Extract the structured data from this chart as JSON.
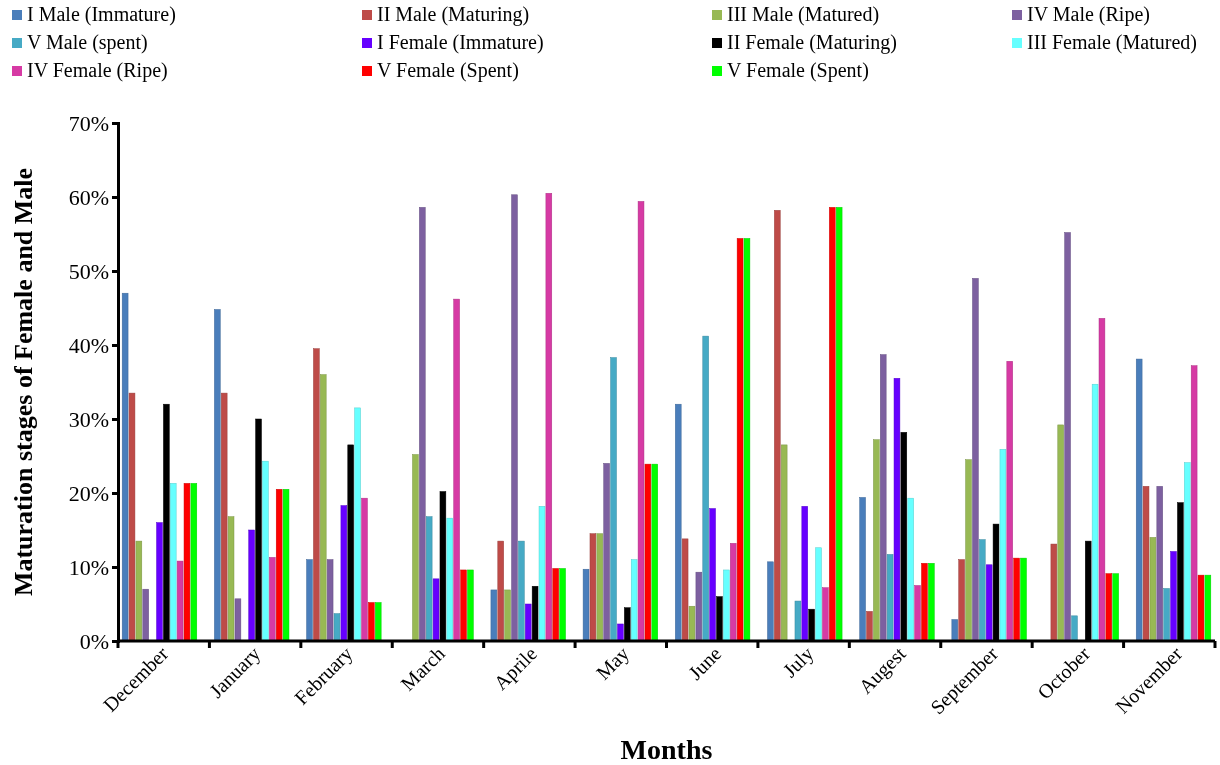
{
  "chart_data": {
    "type": "bar",
    "xlabel": "Months",
    "ylabel": "Maturation stages of Female and Male",
    "categories": [
      "December",
      "January",
      "February",
      "March",
      "Aprile",
      "May",
      "June",
      "July",
      "Augest",
      "September",
      "October",
      "November"
    ],
    "ylim": [
      0,
      70
    ],
    "yticks": [
      {
        "value": 0,
        "label": "0%"
      },
      {
        "value": 10,
        "label": "10%"
      },
      {
        "value": 20,
        "label": "20%"
      },
      {
        "value": 30,
        "label": "30%"
      },
      {
        "value": 40,
        "label": "40%"
      },
      {
        "value": 50,
        "label": "50%"
      },
      {
        "value": 60,
        "label": "60%"
      },
      {
        "value": 70,
        "label": "70%"
      }
    ],
    "grid": false,
    "legend": "top",
    "series": [
      {
        "name": "I Male (Immature)",
        "color": "#4a7ebb",
        "values": [
          47,
          44.8,
          11,
          0,
          6.9,
          9.7,
          32,
          10.7,
          19.4,
          2.9,
          0,
          38.1
        ]
      },
      {
        "name": "II Male (Maturing)",
        "color": "#be4b48",
        "values": [
          33.5,
          33.5,
          39.5,
          0,
          13.5,
          14.5,
          13.8,
          58.2,
          4,
          11,
          13.1,
          20.9
        ]
      },
      {
        "name": "III Male (Matured)",
        "color": "#98b954",
        "values": [
          13.5,
          16.8,
          36,
          25.2,
          6.9,
          14.5,
          4.7,
          26.5,
          27.2,
          24.5,
          29.2,
          14
        ]
      },
      {
        "name": "IV Male (Ripe)",
        "color": "#7d60a0",
        "values": [
          7,
          5.7,
          11,
          58.6,
          60.3,
          24,
          9.3,
          0,
          38.7,
          49,
          55.2,
          20.9
        ]
      },
      {
        "name": "V Male (spent)",
        "color": "#46aac5",
        "values": [
          0,
          0,
          3.7,
          16.8,
          13.5,
          38.3,
          41.2,
          5.4,
          11.7,
          13.7,
          3.4,
          7.1
        ]
      },
      {
        "name": "I Female (Immature)",
        "color": "#6600ff",
        "values": [
          16,
          15,
          18.3,
          8.4,
          5,
          2.3,
          17.9,
          18.2,
          35.5,
          10.3,
          0,
          12.1
        ]
      },
      {
        "name": "II Female (Maturing)",
        "color": "#000000",
        "values": [
          32,
          30,
          26.5,
          20.2,
          7.4,
          4.5,
          6,
          4.3,
          28.2,
          15.8,
          13.5,
          18.7
        ]
      },
      {
        "name": "III Female (Matured)",
        "color": "#66ffff",
        "values": [
          21.3,
          24.3,
          31.5,
          16.6,
          18.2,
          11,
          9.6,
          12.6,
          19.3,
          25.9,
          34.7,
          24.1
        ]
      },
      {
        "name": "IV Female (Ripe)",
        "color": "#d63aa4",
        "values": [
          10.8,
          11.3,
          19.3,
          46.2,
          60.5,
          59.4,
          13.2,
          7.2,
          7.5,
          37.8,
          43.6,
          37.2
        ]
      },
      {
        "name": "V Female (Spent)",
        "color": "#ff0000",
        "values": [
          21.3,
          20.5,
          5.2,
          9.6,
          9.8,
          23.9,
          54.4,
          58.6,
          10.5,
          11.2,
          9.1,
          8.9
        ]
      },
      {
        "name": "V Female (Spent)",
        "color": "#00ff00",
        "values": [
          21.3,
          20.5,
          5.2,
          9.6,
          9.8,
          23.9,
          54.4,
          58.6,
          10.5,
          11.2,
          9.1,
          8.9
        ]
      }
    ]
  }
}
